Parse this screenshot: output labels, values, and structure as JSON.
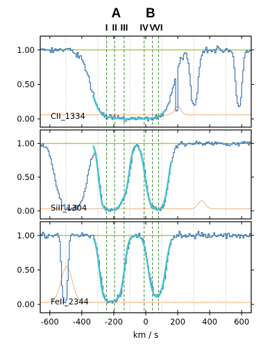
{
  "header": {
    "groups": [
      {
        "label": "A",
        "center_kms": -185
      },
      {
        "label": "B",
        "center_kms": 30
      }
    ],
    "components": [
      {
        "label": "I",
        "v": -245
      },
      {
        "label": "II",
        "v": -195
      },
      {
        "label": "III",
        "v": -135
      },
      {
        "label": "IV",
        "v": -10
      },
      {
        "label": "V",
        "v": 42
      },
      {
        "label": "VI",
        "v": 80
      }
    ]
  },
  "chart_data": {
    "type": "line",
    "xlabel": "km / s",
    "xlim": [
      -660,
      660
    ],
    "xticks": [
      -600,
      -400,
      -200,
      0,
      200,
      400,
      600
    ],
    "ylim": [
      -0.12,
      1.2
    ],
    "yticks": [
      0.0,
      0.5,
      1.0
    ],
    "gridlines_x_kms": [
      -500,
      -300,
      -100,
      100,
      300,
      500
    ],
    "component_lines_kms": [
      -245,
      -195,
      -135,
      -10,
      42,
      80
    ],
    "colors": {
      "data": "#2b6cb0",
      "model": "#45c2c9",
      "continuum": "#9fcc3b",
      "error": "#f5b27c",
      "component_line": "#3a8a2e",
      "grid": "#b5b5b5"
    },
    "panels": [
      {
        "ion": "CII_1334",
        "absorption": [
          {
            "v": -200,
            "width": 80,
            "depth": 1.0
          },
          {
            "v": -120,
            "width": 35,
            "depth": 0.95
          },
          {
            "v": -40,
            "width": 35,
            "depth": 0.95
          },
          {
            "v": 40,
            "width": 70,
            "depth": 1.0
          }
        ],
        "model_range": [
          -330,
          120
        ],
        "error_level": 0.06,
        "error_feature": {
          "v": 200,
          "width": 20,
          "height": 0.12
        },
        "noise": 0.05,
        "extra_dips": [
          {
            "v": 300,
            "width": 18,
            "depth": 0.4
          },
          {
            "v": 580,
            "width": 15,
            "depth": 0.45
          }
        ]
      },
      {
        "ion": "SiII_1304",
        "absorption": [
          {
            "v": -245,
            "width": 28,
            "depth": 0.85
          },
          {
            "v": -195,
            "width": 28,
            "depth": 0.85
          },
          {
            "v": -135,
            "width": 25,
            "depth": 0.3
          },
          {
            "v": 70,
            "width": 40,
            "depth": 0.95
          }
        ],
        "model_range": [
          -330,
          160
        ],
        "error_level": 0.03,
        "error_feature": {
          "v": 350,
          "width": 22,
          "height": 0.12
        },
        "noise": 0.04,
        "extra_dips": [
          {
            "v": -470,
            "width": 55,
            "depth": 0.98
          }
        ]
      },
      {
        "ion": "FeII_2344",
        "absorption": [
          {
            "v": -240,
            "width": 30,
            "depth": 0.7
          },
          {
            "v": -180,
            "width": 30,
            "depth": 0.55
          },
          {
            "v": 70,
            "width": 35,
            "depth": 0.55
          }
        ],
        "model_range": [
          -330,
          160
        ],
        "error_level": 0.03,
        "error_feature": {
          "v": -495,
          "width": 35,
          "height": 0.52
        },
        "noise": 0.05,
        "extra_dips": [
          {
            "v": -510,
            "width": 12,
            "depth": 0.9
          }
        ]
      }
    ]
  }
}
